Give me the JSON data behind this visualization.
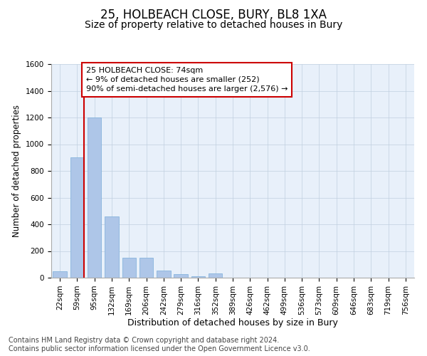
{
  "title1": "25, HOLBEACH CLOSE, BURY, BL8 1XA",
  "title2": "Size of property relative to detached houses in Bury",
  "xlabel": "Distribution of detached houses by size in Bury",
  "ylabel": "Number of detached properties",
  "categories": [
    "22sqm",
    "59sqm",
    "95sqm",
    "132sqm",
    "169sqm",
    "206sqm",
    "242sqm",
    "279sqm",
    "316sqm",
    "352sqm",
    "389sqm",
    "426sqm",
    "462sqm",
    "499sqm",
    "536sqm",
    "573sqm",
    "609sqm",
    "646sqm",
    "683sqm",
    "719sqm",
    "756sqm"
  ],
  "values": [
    50,
    900,
    1200,
    460,
    150,
    150,
    55,
    25,
    10,
    30,
    0,
    0,
    0,
    0,
    0,
    0,
    0,
    0,
    0,
    0,
    0
  ],
  "bar_color": "#aec6e8",
  "bar_edge_color": "#7aadda",
  "vline_x_index": 1,
  "vline_color": "#cc0000",
  "annotation_line1": "25 HOLBEACH CLOSE: 74sqm",
  "annotation_line2": "← 9% of detached houses are smaller (252)",
  "annotation_line3": "90% of semi-detached houses are larger (2,576) →",
  "annotation_box_facecolor": "#ffffff",
  "annotation_box_edgecolor": "#cc0000",
  "ylim": [
    0,
    1600
  ],
  "yticks": [
    0,
    200,
    400,
    600,
    800,
    1000,
    1200,
    1400,
    1600
  ],
  "background_color": "#e8f0fa",
  "footer": "Contains HM Land Registry data © Crown copyright and database right 2024.\nContains public sector information licensed under the Open Government Licence v3.0.",
  "title1_fontsize": 12,
  "title2_fontsize": 10,
  "xlabel_fontsize": 9,
  "ylabel_fontsize": 8.5,
  "tick_fontsize": 7.5,
  "footer_fontsize": 7,
  "annotation_fontsize": 8
}
